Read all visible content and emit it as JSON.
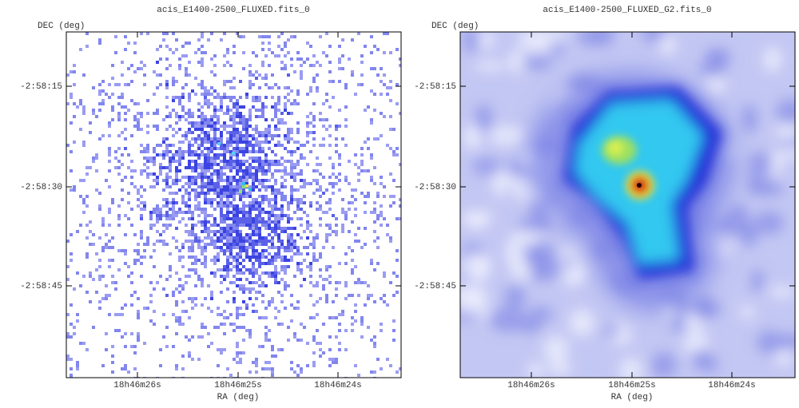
{
  "panels": [
    {
      "title": "acis_E1400-2500_FLUXED.fits_0",
      "x_label": "RA (deg)",
      "y_label": "DEC (deg)",
      "x_ticks": [
        "18h46m26s",
        "18h46m25s",
        "18h46m24s"
      ],
      "y_ticks": [
        "-2:58:15",
        "-2:58:30",
        "-2:58:45"
      ]
    },
    {
      "title": "acis_E1400-2500_FLUXED_G2.fits_0",
      "x_label": "RA (deg)",
      "y_label": "DEC (deg)",
      "x_ticks": [
        "18h46m26s",
        "18h46m25s",
        "18h46m24s"
      ],
      "y_ticks": [
        "-2:58:15",
        "-2:58:30",
        "-2:58:45"
      ]
    }
  ]
}
